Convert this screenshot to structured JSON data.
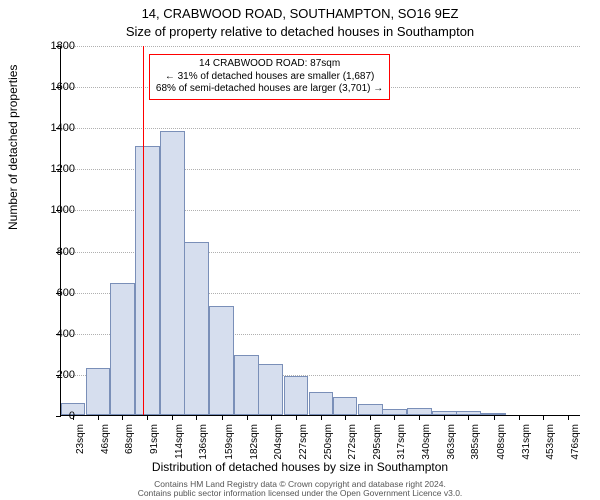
{
  "chart": {
    "type": "histogram",
    "title_line1": "14, CRABWOOD ROAD, SOUTHAMPTON, SO16 9EZ",
    "title_line2": "Size of property relative to detached houses in Southampton",
    "title_fontsize": 13,
    "yaxis_label": "Number of detached properties",
    "xaxis_label": "Distribution of detached houses by size in Southampton",
    "axis_label_fontsize": 12,
    "tick_fontsize": 11,
    "background_color": "#ffffff",
    "grid_color": "#b0b0b0",
    "grid_style": "dotted",
    "axis_color": "#000000",
    "bar_fill_color": "#d6deee",
    "bar_border_color": "#7a8fb8",
    "ref_line_color": "#ff0000",
    "ref_line_value": 87,
    "annotation": {
      "line1": "14 CRABWOOD ROAD: 87sqm",
      "line2": "← 31% of detached houses are smaller (1,687)",
      "line3": "68% of semi-detached houses are larger (3,701) →",
      "border_color": "#ff0000",
      "bg_color": "#ffffff",
      "fontsize": 10
    },
    "ylim": [
      0,
      1800
    ],
    "ytick_step": 200,
    "yticks": [
      0,
      200,
      400,
      600,
      800,
      1000,
      1200,
      1400,
      1600,
      1800
    ],
    "xlim": [
      12,
      488
    ],
    "xticks": [
      23,
      46,
      68,
      91,
      114,
      136,
      159,
      182,
      204,
      227,
      250,
      272,
      295,
      317,
      340,
      363,
      385,
      408,
      431,
      453,
      476
    ],
    "xtick_labels": [
      "23sqm",
      "46sqm",
      "68sqm",
      "91sqm",
      "114sqm",
      "136sqm",
      "159sqm",
      "182sqm",
      "204sqm",
      "227sqm",
      "250sqm",
      "272sqm",
      "295sqm",
      "317sqm",
      "340sqm",
      "363sqm",
      "385sqm",
      "408sqm",
      "431sqm",
      "453sqm",
      "476sqm"
    ],
    "bar_width_data": 22.6,
    "bars": [
      {
        "center": 23,
        "value": 60
      },
      {
        "center": 46,
        "value": 230
      },
      {
        "center": 68,
        "value": 640
      },
      {
        "center": 91,
        "value": 1310
      },
      {
        "center": 114,
        "value": 1380
      },
      {
        "center": 136,
        "value": 840
      },
      {
        "center": 159,
        "value": 530
      },
      {
        "center": 182,
        "value": 290
      },
      {
        "center": 204,
        "value": 250
      },
      {
        "center": 227,
        "value": 190
      },
      {
        "center": 250,
        "value": 110
      },
      {
        "center": 272,
        "value": 90
      },
      {
        "center": 295,
        "value": 55
      },
      {
        "center": 317,
        "value": 30
      },
      {
        "center": 340,
        "value": 35
      },
      {
        "center": 363,
        "value": 20
      },
      {
        "center": 385,
        "value": 18
      },
      {
        "center": 408,
        "value": 10
      },
      {
        "center": 431,
        "value": 0
      },
      {
        "center": 453,
        "value": 0
      },
      {
        "center": 476,
        "value": 0
      }
    ],
    "footer_line1": "Contains HM Land Registry data © Crown copyright and database right 2024.",
    "footer_line2": "Contains public sector information licensed under the Open Government Licence v3.0.",
    "footer_color": "#555555",
    "footer_fontsize": 8.5
  }
}
